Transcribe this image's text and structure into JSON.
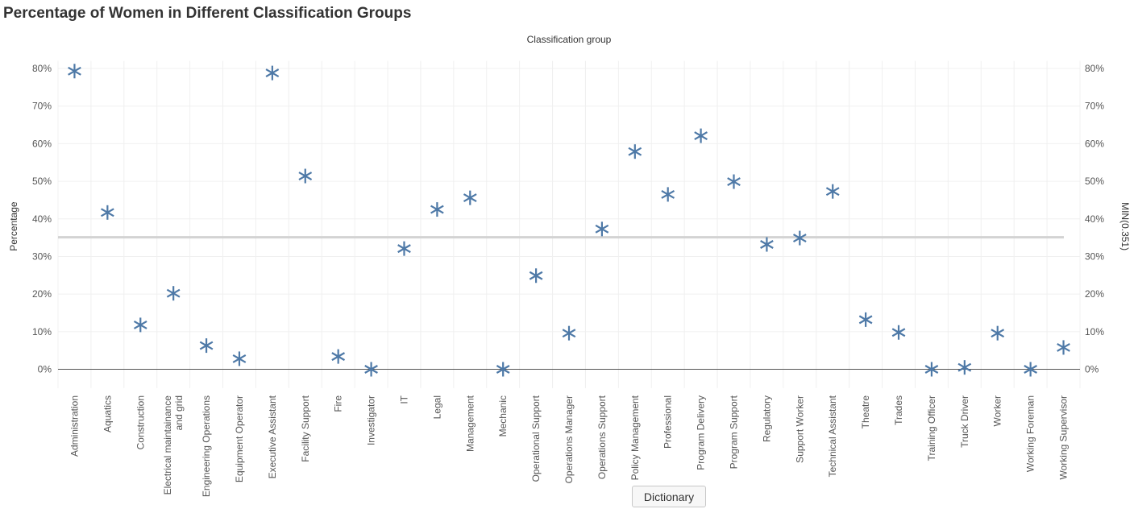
{
  "page_title": "Percentage of Women in Different Classification Groups",
  "dictionary_button": "Dictionary",
  "colors": {
    "marker": "#4e79a7",
    "reference_line": "#d3d3d3",
    "grid": "#f0f0f0",
    "zero_line": "#555555",
    "text": "#555555"
  },
  "chart_data": {
    "type": "scatter",
    "marker": "asterisk",
    "title": "Percentage of Women in Different Classification Groups",
    "top_axis_label": "Classification group",
    "ylabel": "Percentage",
    "ylabel_right": "MIN(0.351)",
    "ylim": [
      -5,
      82
    ],
    "yticks": [
      0,
      10,
      20,
      30,
      40,
      50,
      60,
      70,
      80
    ],
    "ytick_labels": [
      "0%",
      "10%",
      "20%",
      "30%",
      "40%",
      "50%",
      "60%",
      "70%",
      "80%"
    ],
    "reference_line": 35.1,
    "grid": true,
    "categories": [
      "Administration",
      "Aquatics",
      "Construction",
      "Electrical maintainance and grid",
      "Engineering Operations",
      "Equipment Operator",
      "Executive Assistant",
      "Facility Support",
      "Fire",
      "Investigator",
      "IT",
      "Legal",
      "Management",
      "Mechanic",
      "Operational Support",
      "Operations Manager",
      "Operations Support",
      "Policy Management",
      "Professional",
      "Program Delivery",
      "Program Support",
      "Regulatory",
      "Support Worker",
      "Technical Assistant",
      "Theatre",
      "Trades",
      "Training Officer",
      "Truck Driver",
      "Worker",
      "Working Foreman",
      "Working Supervisor"
    ],
    "category_label_lines": [
      [
        "Administration"
      ],
      [
        "Aquatics"
      ],
      [
        "Construction"
      ],
      [
        "Electrical maintainance",
        "and grid"
      ],
      [
        "Engineering Operations"
      ],
      [
        "Equipment Operator"
      ],
      [
        "Executive Assistant"
      ],
      [
        "Facility Support"
      ],
      [
        "Fire"
      ],
      [
        "Investigator"
      ],
      [
        "IT"
      ],
      [
        "Legal"
      ],
      [
        "Management"
      ],
      [
        "Mechanic"
      ],
      [
        "Operational Support"
      ],
      [
        "Operations Manager"
      ],
      [
        "Operations Support"
      ],
      [
        "Policy Management"
      ],
      [
        "Professional"
      ],
      [
        "Program Delivery"
      ],
      [
        "Program Support"
      ],
      [
        "Regulatory"
      ],
      [
        "Support Worker"
      ],
      [
        "Technical Assistant"
      ],
      [
        "Theatre"
      ],
      [
        "Trades"
      ],
      [
        "Training Officer"
      ],
      [
        "Truck Driver"
      ],
      [
        "Worker"
      ],
      [
        "Working Foreman"
      ],
      [
        "Working Supervisor"
      ]
    ],
    "values": [
      79.3,
      41.7,
      11.8,
      20.2,
      6.3,
      2.8,
      78.8,
      51.4,
      3.4,
      0.0,
      32.1,
      42.5,
      45.6,
      0.0,
      24.9,
      9.6,
      37.3,
      57.9,
      46.5,
      62.1,
      49.9,
      33.2,
      34.9,
      47.3,
      13.2,
      9.8,
      0.0,
      0.5,
      9.6,
      0.0,
      5.8
    ]
  }
}
